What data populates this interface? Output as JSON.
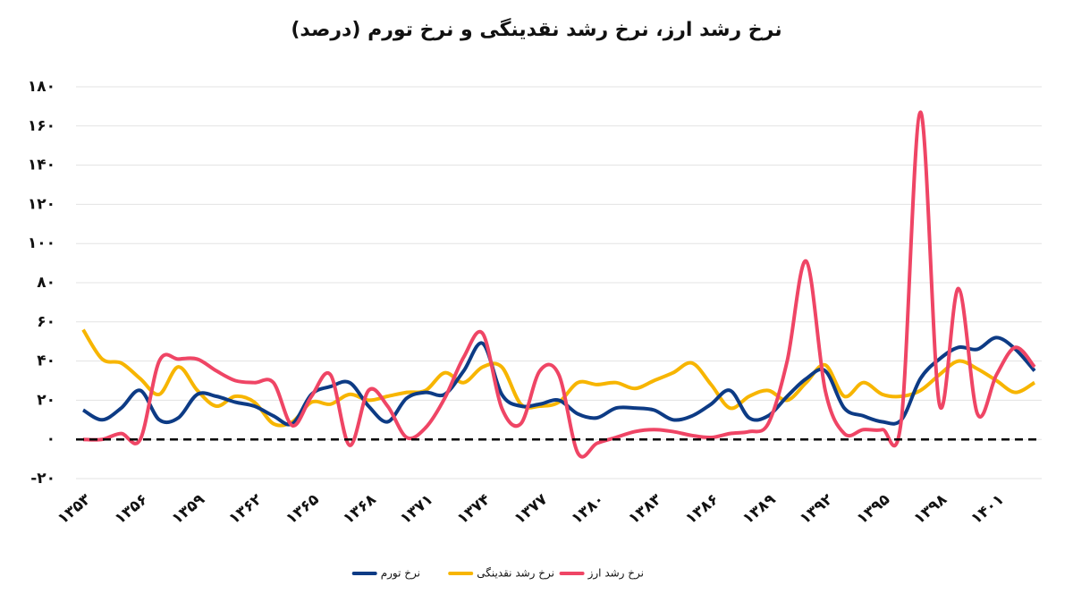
{
  "chart_data": {
    "type": "line",
    "title": "نرخ رشد ارز، نرخ رشد نقدینگی و نرخ تورم (درصد)",
    "categories": [
      "۱۳۵۳",
      null,
      null,
      "۱۳۵۶",
      null,
      null,
      "۱۳۵۹",
      null,
      null,
      "۱۳۶۲",
      null,
      null,
      "۱۳۶۵",
      null,
      null,
      "۱۳۶۸",
      null,
      null,
      "۱۳۷۱",
      null,
      null,
      "۱۳۷۴",
      null,
      null,
      "۱۳۷۷",
      null,
      null,
      "۱۳۸۰",
      null,
      null,
      "۱۳۸۳",
      null,
      null,
      "۱۳۸۶",
      null,
      null,
      "۱۳۸۹",
      null,
      null,
      "۱۳۹۲",
      null,
      null,
      "۱۳۹۵",
      null,
      null,
      "۱۳۹۸",
      null,
      null,
      "۱۴۰۱",
      null,
      null
    ],
    "series": [
      {
        "name": "نرخ تورم",
        "color": "#0d3b85",
        "values": [
          15,
          10,
          16,
          25,
          10,
          11,
          23,
          22,
          19,
          17,
          12,
          8,
          23,
          27,
          29,
          17,
          9,
          21,
          24,
          23,
          35,
          49,
          23,
          17,
          18,
          20,
          13,
          11,
          16,
          16,
          15,
          10,
          12,
          18,
          25,
          11,
          12,
          22,
          31,
          35,
          16,
          12,
          9,
          10,
          31,
          41,
          47,
          46,
          52,
          46,
          35
        ]
      },
      {
        "name": "نرخ رشد نقدینگی",
        "color": "#f7b500",
        "values": [
          56,
          41,
          39,
          31,
          23,
          37,
          25,
          17,
          22,
          19,
          8,
          9,
          19,
          18,
          23,
          20,
          22,
          24,
          25,
          34,
          29,
          37,
          37,
          18,
          17,
          19,
          29,
          28,
          29,
          26,
          30,
          34,
          39,
          28,
          16,
          22,
          25,
          20,
          29,
          38,
          22,
          29,
          23,
          22,
          25,
          33,
          40,
          36,
          30,
          24,
          29
        ]
      },
      {
        "name": "نرخ رشد ارز",
        "color": "#ef4565",
        "values": [
          0,
          0,
          3,
          0,
          40,
          41,
          41,
          35,
          30,
          29,
          29,
          7,
          22,
          33,
          -3,
          25,
          17,
          1,
          6,
          21,
          42,
          54,
          16,
          8,
          35,
          33,
          -7,
          -2,
          1,
          4,
          5,
          4,
          2,
          1,
          3,
          4,
          8,
          40,
          91,
          25,
          3,
          5,
          5,
          10,
          167,
          18,
          77,
          13,
          33,
          47,
          37
        ]
      }
    ],
    "ylim": [
      -20,
      180
    ],
    "yticks": [
      {
        "value": -20,
        "label": "-۲۰"
      },
      {
        "value": 0,
        "label": "۰"
      },
      {
        "value": 20,
        "label": "۲۰"
      },
      {
        "value": 40,
        "label": "۴۰"
      },
      {
        "value": 60,
        "label": "۶۰"
      },
      {
        "value": 80,
        "label": "۸۰"
      },
      {
        "value": 100,
        "label": "۱۰۰"
      },
      {
        "value": 120,
        "label": "۱۲۰"
      },
      {
        "value": 140,
        "label": "۱۴۰"
      },
      {
        "value": 160,
        "label": "۱۶۰"
      },
      {
        "value": 180,
        "label": "۱۸۰"
      }
    ],
    "grid": true
  }
}
